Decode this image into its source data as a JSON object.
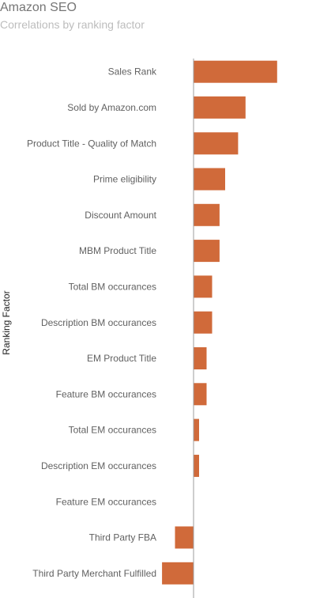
{
  "chart_data": {
    "type": "bar",
    "orientation": "horizontal",
    "title": "Amazon SEO",
    "subtitle": "Correlations by ranking factor",
    "ylabel": "Ranking Factor",
    "xlabel": "",
    "categories": [
      "Sales Rank",
      "Sold by Amazon.com",
      "Product Title - Quality of Match",
      "Prime eligibility",
      "Discount Amount",
      "MBM Product Title",
      "Total BM occurances",
      "Description BM occurances",
      "EM Product Title",
      "Feature BM occurances",
      "Total EM occurances",
      "Description EM occurances",
      "Feature EM occurances",
      "Third Party FBA",
      "Third Party Merchant Fulfilled"
    ],
    "values": [
      0.45,
      0.28,
      0.24,
      0.17,
      0.14,
      0.14,
      0.1,
      0.1,
      0.07,
      0.07,
      0.03,
      0.03,
      0.0,
      -0.1,
      -0.17
    ],
    "xlim": [
      -0.17,
      0.45
    ],
    "grid": false,
    "legend": "none",
    "colors": {
      "bar": "#d06a3a",
      "axis": "#9e9e9e",
      "label": "#616161",
      "title": "#757575",
      "subtitle": "#bdbdbd"
    }
  }
}
